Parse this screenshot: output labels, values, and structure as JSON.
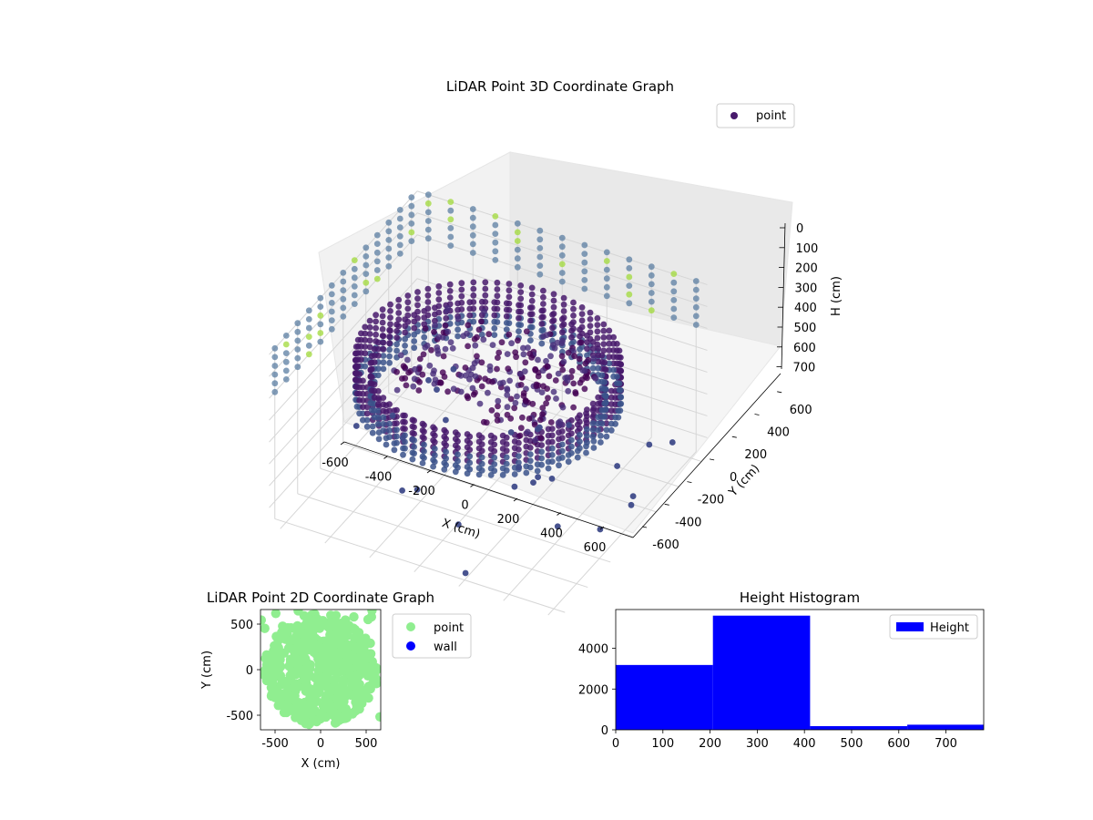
{
  "chart_data": [
    {
      "type": "scatter3d",
      "title": "LiDAR Point 3D Coordinate Graph",
      "xlabel": "X (cm)",
      "ylabel": "Y (cm)",
      "zlabel": "H (cm)",
      "xticks": [
        -600,
        -400,
        -200,
        0,
        200,
        400,
        600
      ],
      "yticks": [
        -600,
        -400,
        -200,
        0,
        200,
        400,
        600
      ],
      "zticks": [
        0,
        100,
        200,
        300,
        400,
        500,
        600,
        700
      ],
      "xlim": [
        -650,
        650
      ],
      "ylim": [
        -650,
        650
      ],
      "zlim": [
        0,
        780
      ],
      "zaxis_inverted": true,
      "legend": {
        "entries": [
          "point"
        ],
        "placement": "upper-right"
      },
      "colormap": "viridis",
      "series": [
        {
          "name": "point",
          "color": "#481a6c"
        }
      ],
      "point_groups": [
        {
          "shape": "ring",
          "radius": 530,
          "h_from": 180,
          "h_to": 360,
          "count": 70
        },
        {
          "shape": "ring",
          "radius": 470,
          "h_from": 230,
          "h_to": 380,
          "count": 60
        },
        {
          "shape": "cluster",
          "x": 50,
          "y": 0,
          "h": 220,
          "spread": 300,
          "count": 260
        },
        {
          "shape": "wall-columns",
          "distance": 650,
          "h_from": 0,
          "h_to": 220,
          "color": "#5b7ea1"
        },
        {
          "shape": "sparse-low",
          "h": 720,
          "count": 28,
          "color": "#3e4a89"
        }
      ]
    },
    {
      "type": "scatter",
      "title": "LiDAR Point 2D Coordinate Graph",
      "xlabel": "X (cm)",
      "ylabel": "Y (cm)",
      "xticks": [
        -500,
        0,
        500
      ],
      "yticks": [
        -500,
        0,
        500
      ],
      "xlim": [
        -660,
        660
      ],
      "ylim": [
        -660,
        660
      ],
      "legend": {
        "placement": "outside-right"
      },
      "series": [
        {
          "name": "point",
          "color": "#90ee90"
        },
        {
          "name": "wall",
          "color": "#0000ff"
        }
      ]
    },
    {
      "type": "bar",
      "title": "Height Histogram",
      "legend": {
        "placement": "top-right"
      },
      "xticks": [
        0,
        100,
        200,
        300,
        400,
        500,
        600,
        700
      ],
      "yticks": [
        0,
        2000,
        4000
      ],
      "xlim": [
        0,
        780
      ],
      "ylim": [
        0,
        5900
      ],
      "series": [
        {
          "name": "Height",
          "color": "#0000ff"
        }
      ],
      "bins": [
        {
          "from": 0,
          "to": 206,
          "count": 3180
        },
        {
          "from": 206,
          "to": 412,
          "count": 5600
        },
        {
          "from": 412,
          "to": 618,
          "count": 180
        },
        {
          "from": 618,
          "to": 780,
          "count": 250
        }
      ]
    }
  ]
}
